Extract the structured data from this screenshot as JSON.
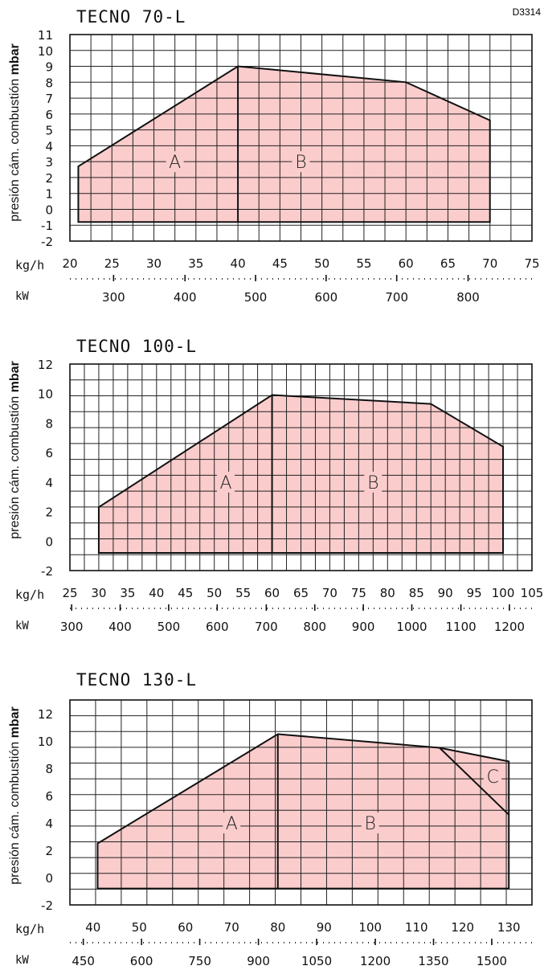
{
  "figure_code": "D3314",
  "chart_data": [
    {
      "type": "area",
      "title": "TECNO 70-L",
      "ylabel_prefix": "presión cám. combustión ",
      "ylabel_unit": "mbar",
      "y_ticks": [
        "11",
        "10",
        "9",
        "8",
        "7",
        "6",
        "5",
        "4",
        "3",
        "2",
        "1",
        "0",
        "-1",
        "-2"
      ],
      "ylim": [
        -2,
        11
      ],
      "xlabel": "kg/h",
      "x_ticks": [
        "20",
        "25",
        "30",
        "35",
        "40",
        "45",
        "50",
        "55",
        "60",
        "65",
        "70",
        "75"
      ],
      "xlim": [
        20,
        75
      ],
      "x2label": "kW",
      "x2_ticks": [
        "300",
        "400",
        "500",
        "600",
        "700",
        "800"
      ],
      "x2_tick_positions_kgh": [
        25.2,
        33.7,
        42.1,
        50.5,
        58.9,
        67.4
      ],
      "envelope": [
        [
          21,
          -0.8
        ],
        [
          21,
          2.7
        ],
        [
          40,
          9
        ],
        [
          60,
          8
        ],
        [
          70,
          5.6
        ],
        [
          70,
          -0.8
        ]
      ],
      "dividers": [
        [
          [
            40,
            9
          ],
          [
            40,
            -0.8
          ]
        ]
      ],
      "regions": [
        {
          "label": "A",
          "x": 32.5,
          "y": 3
        },
        {
          "label": "B",
          "x": 47.5,
          "y": 3
        }
      ],
      "grid": true
    },
    {
      "type": "area",
      "title": "TECNO 100-L",
      "ylabel_prefix": "presión cám. combustión ",
      "ylabel_unit": "mbar",
      "y_ticks": [
        "12",
        "10",
        "8",
        "6",
        "4",
        "2",
        "0",
        "-2"
      ],
      "ylim": [
        -2,
        12
      ],
      "xlabel": "kg/h",
      "x_ticks": [
        "25",
        "30",
        "35",
        "40",
        "45",
        "50",
        "55",
        "60",
        "65",
        "70",
        "75",
        "80",
        "85",
        "90",
        "95",
        "100",
        "105"
      ],
      "xlim": [
        25,
        105
      ],
      "x2label": "kW",
      "x2_ticks": [
        "300",
        "400",
        "500",
        "600",
        "700",
        "800",
        "900",
        "1000",
        "1100",
        "1200"
      ],
      "x2_tick_positions_kgh": [
        25.3,
        33.7,
        42.1,
        50.5,
        59.0,
        67.4,
        75.8,
        84.2,
        92.7,
        101.1
      ],
      "envelope": [
        [
          30,
          -0.8
        ],
        [
          30,
          2.3
        ],
        [
          60,
          9.9
        ],
        [
          87.5,
          9.3
        ],
        [
          100,
          6.4
        ],
        [
          100,
          -0.8
        ]
      ],
      "dividers": [
        [
          [
            60,
            9.9
          ],
          [
            60,
            -0.8
          ]
        ]
      ],
      "regions": [
        {
          "label": "A",
          "x": 52,
          "y": 4
        },
        {
          "label": "B",
          "x": 77.5,
          "y": 4
        }
      ],
      "grid": true
    },
    {
      "type": "area",
      "title": "TECNO 130-L",
      "ylabel_prefix": "presión cám. combustión ",
      "ylabel_unit": "mbar",
      "y_ticks": [
        "12",
        "10",
        "8",
        "6",
        "4",
        "2",
        "0",
        "-2"
      ],
      "ylim": [
        -2,
        13
      ],
      "xlabel": "kg/h",
      "x_ticks": [
        "40",
        "50",
        "60",
        "70",
        "80",
        "90",
        "100",
        "110",
        "120",
        "130"
      ],
      "xlim": [
        35,
        135
      ],
      "x2label": "kW",
      "x2_ticks": [
        "450",
        "600",
        "750",
        "900",
        "1050",
        "1200",
        "1350",
        "1500"
      ],
      "x2_tick_positions_kgh": [
        37.9,
        50.5,
        63.1,
        75.8,
        88.4,
        101.1,
        113.7,
        126.3
      ],
      "envelope": [
        [
          41,
          -0.8
        ],
        [
          41,
          2.5
        ],
        [
          80,
          10.5
        ],
        [
          115,
          9.5
        ],
        [
          130,
          8.5
        ],
        [
          130,
          -0.8
        ]
      ],
      "dividers": [
        [
          [
            80,
            10.5
          ],
          [
            80,
            -0.8
          ]
        ],
        [
          [
            115,
            9.5
          ],
          [
            130,
            4.6
          ]
        ]
      ],
      "regions": [
        {
          "label": "A",
          "x": 70,
          "y": 4
        },
        {
          "label": "B",
          "x": 100,
          "y": 4
        },
        {
          "label": "C",
          "x": 126.5,
          "y": 7.4
        }
      ],
      "grid": true
    }
  ]
}
